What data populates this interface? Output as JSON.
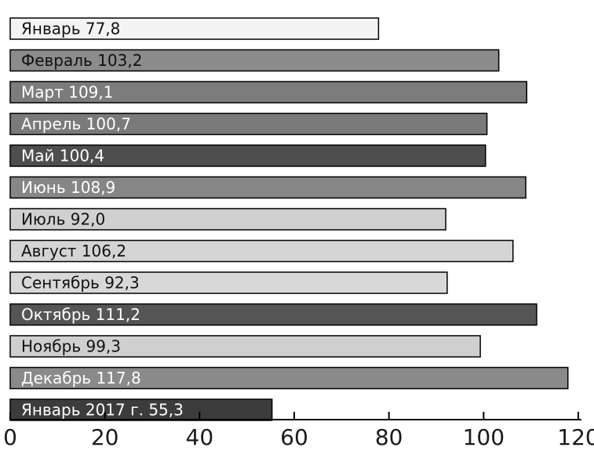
{
  "chart_data": {
    "type": "bar",
    "orientation": "horizontal",
    "title": "",
    "xlabel": "",
    "ylabel": "",
    "xlim": [
      0,
      120
    ],
    "ticks": [
      0,
      20,
      40,
      60,
      80,
      100,
      120
    ],
    "grid": false,
    "bars": [
      {
        "label": "Январь 77,8",
        "value": 77.8,
        "color": "#f4f4f4",
        "text_color": "#111111"
      },
      {
        "label": "Февраль 103,2",
        "value": 103.2,
        "color": "#8c8c8c",
        "text_color": "#111111"
      },
      {
        "label": "Март 109,1",
        "value": 109.1,
        "color": "#7c7c7c",
        "text_color": "#ffffff"
      },
      {
        "label": "Апрель 100,7",
        "value": 100.7,
        "color": "#7a7a7a",
        "text_color": "#ffffff"
      },
      {
        "label": "Май 100,4",
        "value": 100.4,
        "color": "#4e4e4e",
        "text_color": "#ffffff"
      },
      {
        "label": "Июнь 108,9",
        "value": 108.9,
        "color": "#868686",
        "text_color": "#ffffff"
      },
      {
        "label": "Июль 92,0",
        "value": 92.0,
        "color": "#d0d0d0",
        "text_color": "#111111"
      },
      {
        "label": "Август 106,2",
        "value": 106.2,
        "color": "#d4d4d4",
        "text_color": "#111111"
      },
      {
        "label": "Сентябрь 92,3",
        "value": 92.3,
        "color": "#d8d8d8",
        "text_color": "#111111"
      },
      {
        "label": "Октябрь 111,2",
        "value": 111.2,
        "color": "#555555",
        "text_color": "#ffffff"
      },
      {
        "label": "Ноябрь 99,3",
        "value": 99.3,
        "color": "#cfcfcf",
        "text_color": "#111111"
      },
      {
        "label": "Декабрь 117,8",
        "value": 117.8,
        "color": "#8a8a8a",
        "text_color": "#ffffff"
      },
      {
        "label": "Январь 2017 г. 55,3",
        "value": 55.3,
        "color": "#3c3c3c",
        "text_color": "#ffffff"
      }
    ]
  }
}
